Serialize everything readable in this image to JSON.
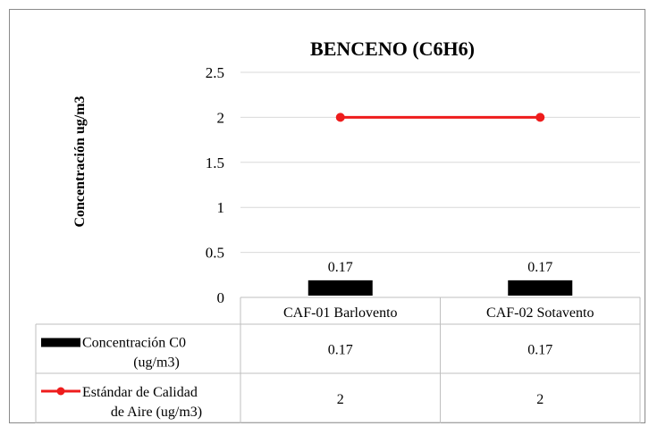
{
  "chart_data": {
    "type": "bar",
    "title": "BENCENO (C6H6)",
    "xlabel": "",
    "ylabel": "Concentración ug/m3",
    "categories": [
      "CAF-01 Barlovento",
      "CAF-02 Sotavento"
    ],
    "ylim": [
      0,
      2.5
    ],
    "yticks": [
      0,
      0.5,
      1,
      1.5,
      2,
      2.5
    ],
    "grid": true,
    "legend_placement": "data-table",
    "series": [
      {
        "name": "Concentración C0 (ug/m3)",
        "name_lines": [
          "Concentración C0",
          "(ug/m3)"
        ],
        "kind": "bar",
        "color": "#000000",
        "values": [
          0.17,
          0.17
        ],
        "data_labels": [
          "0.17",
          "0.17"
        ],
        "table_values": [
          "0.17",
          "0.17"
        ]
      },
      {
        "name": "Estándar de Calidad de Aire (ug/m3)",
        "name_lines": [
          "Estándar de Calidad",
          "de Aire (ug/m3)"
        ],
        "kind": "line",
        "color": "#ee1c1c",
        "values": [
          2,
          2
        ],
        "table_values": [
          "2",
          "2"
        ]
      }
    ]
  }
}
